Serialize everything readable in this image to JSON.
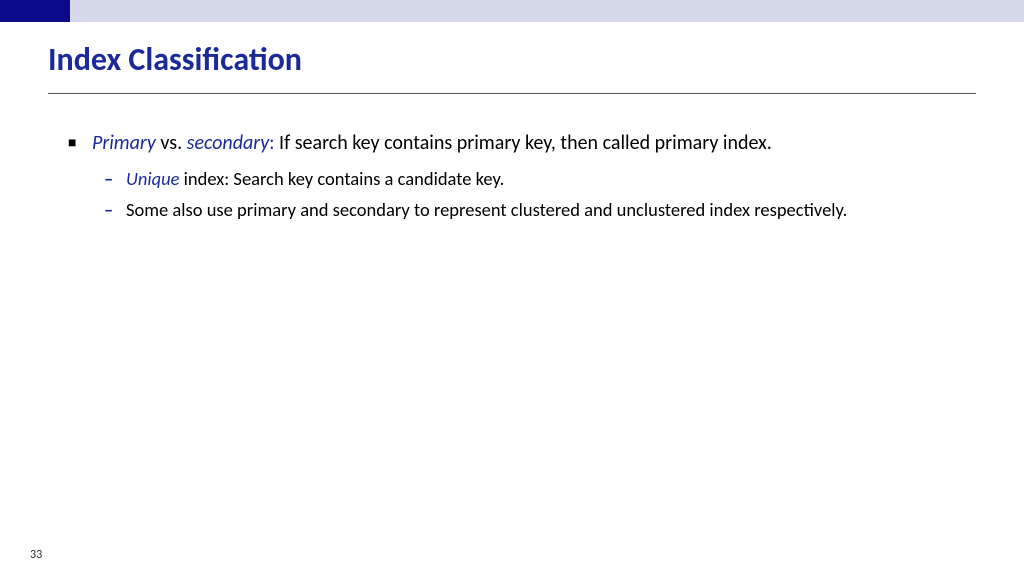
{
  "colors": {
    "header_bar": "#d6d9ea",
    "header_block": "#0a0a8a",
    "title_color": "#1a2a9a",
    "accent_blue": "#1a2a9a",
    "rule_color": "#555555",
    "body_text": "#000000",
    "background": "#ffffff"
  },
  "typography": {
    "title_size_pt": 32,
    "body_size_pt": 20,
    "sub_size_pt": 18.5,
    "page_num_size_pt": 12,
    "title_weight": 700,
    "family": "Calibri"
  },
  "title": "Index Classification",
  "page_number": "33",
  "bullets": {
    "l1": {
      "part1_italic": "Primary",
      "part2_plain": "  vs. ",
      "part3_italic": "secondary",
      "part4_colon": ":",
      "part5_rest": "  If search key contains primary key, then called primary index."
    },
    "l2a": {
      "lead_italic": "Unique",
      "rest": " index:  Search key contains a candidate key."
    },
    "l2b": {
      "text": "Some also use primary and secondary to represent clustered and unclustered index respectively."
    }
  }
}
